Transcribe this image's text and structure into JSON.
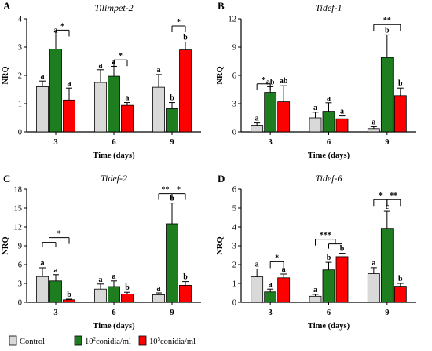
{
  "legend": {
    "items": [
      {
        "label": "Control",
        "color": "#d9d9d9"
      },
      {
        "label": "10",
        "sup": "2",
        "suffix": "conidia/ml",
        "color": "#1e7d1e"
      },
      {
        "label": "10",
        "sup": "5",
        "suffix": "conidia/ml",
        "color": "#ff0000"
      }
    ]
  },
  "chart_data": [
    {
      "type": "bar",
      "panel": "A",
      "title": "Tilimpet-2",
      "xlabel": "Time (days)",
      "ylabel": "NRQ",
      "categories": [
        "3",
        "6",
        "9"
      ],
      "ylim": [
        0,
        4
      ],
      "yticks": [
        0,
        1,
        2,
        3,
        4
      ],
      "series": [
        {
          "name": "Control",
          "values": [
            1.6,
            1.75,
            1.58
          ],
          "errors": [
            0.2,
            0.45,
            0.45
          ],
          "letters": [
            "a",
            "a",
            "a"
          ]
        },
        {
          "name": "10²conidia/ml",
          "values": [
            2.93,
            1.97,
            0.82
          ],
          "errors": [
            0.5,
            0.35,
            0.22
          ],
          "letters": [
            "a",
            "a",
            "b"
          ]
        },
        {
          "name": "10⁵conidia/ml",
          "values": [
            1.13,
            0.94,
            2.9
          ],
          "errors": [
            0.42,
            0.1,
            0.28
          ],
          "letters": [
            "a",
            "a",
            "b"
          ]
        }
      ],
      "brackets": [
        {
          "group": 0,
          "from": 1,
          "to": 2,
          "y": 3.6,
          "label": "*"
        },
        {
          "group": 1,
          "from": 1,
          "to": 2,
          "y": 2.55,
          "label": "*"
        },
        {
          "group": 2,
          "from": 1,
          "to": 2,
          "y": 3.75,
          "label": "*"
        }
      ]
    },
    {
      "type": "bar",
      "panel": "B",
      "title": "Tidef-1",
      "xlabel": "Time (days)",
      "ylabel": "NRQ",
      "categories": [
        "3",
        "6",
        "9"
      ],
      "ylim": [
        0,
        12
      ],
      "yticks": [
        0,
        3,
        6,
        9,
        12
      ],
      "series": [
        {
          "name": "Control",
          "values": [
            0.7,
            1.5,
            0.35
          ],
          "errors": [
            0.25,
            0.6,
            0.2
          ],
          "letters": [
            "a",
            "a",
            "a"
          ]
        },
        {
          "name": "10²conidia/ml",
          "values": [
            4.2,
            2.2,
            7.9
          ],
          "errors": [
            0.6,
            0.9,
            2.4
          ],
          "letters": [
            "ab",
            "a",
            "b"
          ]
        },
        {
          "name": "10⁵conidia/ml",
          "values": [
            3.2,
            1.4,
            3.85
          ],
          "errors": [
            1.7,
            0.3,
            0.8
          ],
          "letters": [
            "ab",
            "a",
            "b"
          ]
        }
      ],
      "brackets": [
        {
          "group": 0,
          "from": 0,
          "to": 1,
          "y": 5.1,
          "label": "*"
        },
        {
          "group": 2,
          "from": 0,
          "to": 2,
          "y": 11.4,
          "label": "**"
        }
      ]
    },
    {
      "type": "bar",
      "panel": "C",
      "title": "Tidef-2",
      "xlabel": "Time (days)",
      "ylabel": "NRQ",
      "categories": [
        "3",
        "6",
        "9"
      ],
      "ylim": [
        0,
        18
      ],
      "yticks": [
        0,
        3,
        6,
        9,
        12,
        15,
        18
      ],
      "series": [
        {
          "name": "Control",
          "values": [
            4.1,
            2.1,
            1.2
          ],
          "errors": [
            1.4,
            0.8,
            0.3
          ],
          "letters": [
            "a",
            "a",
            "a"
          ]
        },
        {
          "name": "10²conidia/ml",
          "values": [
            3.4,
            2.5,
            12.5
          ],
          "errors": [
            1.0,
            0.9,
            3.3
          ],
          "letters": [
            "a",
            "a",
            "b"
          ]
        },
        {
          "name": "10⁵conidia/ml",
          "values": [
            0.4,
            1.3,
            2.7
          ],
          "errors": [
            0.1,
            0.3,
            0.6
          ],
          "letters": [
            "b",
            "b",
            "b"
          ]
        }
      ],
      "brackets": [
        {
          "group": 0,
          "from": 0,
          "to": 2,
          "y": 10.3,
          "label": "*",
          "fromSplit": 1
        },
        {
          "group": 2,
          "from": 0,
          "to": 1,
          "y": 17.3,
          "label": "**"
        },
        {
          "group": 2,
          "from": 1,
          "to": 2,
          "y": 17.3,
          "label": "*"
        }
      ]
    },
    {
      "type": "bar",
      "panel": "D",
      "title": "Tidef-6",
      "xlabel": "Time (days)",
      "ylabel": "NRQ",
      "categories": [
        "3",
        "6",
        "9"
      ],
      "ylim": [
        0,
        6
      ],
      "yticks": [
        0,
        1,
        2,
        3,
        4,
        5,
        6
      ],
      "series": [
        {
          "name": "Control",
          "values": [
            1.35,
            0.32,
            1.52
          ],
          "errors": [
            0.42,
            0.1,
            0.32
          ],
          "letters": [
            "a",
            "a",
            "a"
          ]
        },
        {
          "name": "10²conidia/ml",
          "values": [
            0.55,
            1.72,
            3.93
          ],
          "errors": [
            0.15,
            0.4,
            0.9
          ],
          "letters": [
            "a",
            "b",
            "c"
          ]
        },
        {
          "name": "10⁵conidia/ml",
          "values": [
            1.3,
            2.42,
            0.85
          ],
          "errors": [
            0.2,
            0.18,
            0.15
          ],
          "letters": [
            "a",
            "b",
            "b"
          ]
        }
      ],
      "brackets": [
        {
          "group": 0,
          "from": 1,
          "to": 2,
          "y": 2.15,
          "label": "*"
        },
        {
          "group": 1,
          "from": 0,
          "to": 2,
          "y": 3.35,
          "label": "***",
          "toSplit": 1
        },
        {
          "group": 2,
          "from": 0,
          "to": 1,
          "y": 5.45,
          "label": "*"
        },
        {
          "group": 2,
          "from": 1,
          "to": 2,
          "y": 5.45,
          "label": "**"
        }
      ]
    }
  ]
}
